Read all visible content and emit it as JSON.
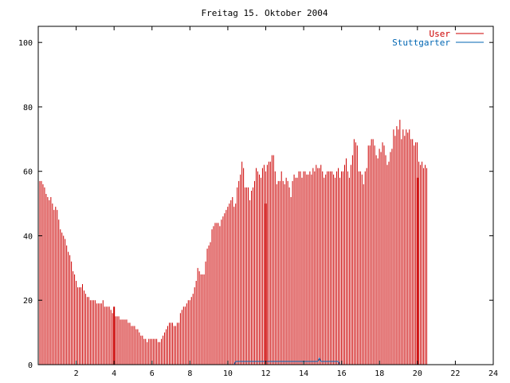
{
  "chart_data": {
    "type": "bar",
    "title": "Freitag 15. Oktober 2004",
    "xlabel": "",
    "ylabel": "",
    "xlim": [
      0,
      24
    ],
    "ylim": [
      0,
      105
    ],
    "x_ticks": [
      2,
      4,
      6,
      8,
      10,
      12,
      14,
      16,
      18,
      20,
      22,
      24
    ],
    "y_ticks": [
      0,
      20,
      40,
      60,
      80,
      100
    ],
    "grid": false,
    "legend_position": "top-right",
    "series": [
      {
        "name": "User",
        "color": "#cc0000",
        "sample_interval_hours": 0.0833,
        "values": [
          61,
          57,
          57,
          56,
          55,
          53,
          52,
          51,
          52,
          50,
          48,
          49,
          48,
          45,
          42,
          41,
          40,
          39,
          37,
          35,
          34,
          32,
          29,
          28,
          26,
          24,
          24,
          24,
          25,
          23,
          22,
          21,
          21,
          20,
          20,
          20,
          20,
          19,
          19,
          19,
          19,
          20,
          18,
          18,
          18,
          18,
          17,
          16,
          15,
          15,
          15,
          15,
          14,
          14,
          14,
          14,
          14,
          13,
          13,
          12,
          12,
          12,
          11,
          11,
          10,
          9,
          9,
          8,
          8,
          7,
          8,
          8,
          8,
          8,
          8,
          8,
          7,
          7,
          8,
          9,
          10,
          11,
          12,
          13,
          13,
          13,
          12,
          12,
          13,
          13,
          16,
          17,
          18,
          18,
          19,
          20,
          20,
          21,
          22,
          24,
          26,
          30,
          29,
          28,
          28,
          28,
          32,
          36,
          37,
          38,
          42,
          43,
          44,
          44,
          44,
          43,
          45,
          46,
          47,
          48,
          49,
          50,
          51,
          52,
          49,
          50,
          55,
          57,
          59,
          63,
          61,
          55,
          55,
          55,
          51,
          54,
          55,
          57,
          61,
          60,
          59,
          58,
          61,
          62,
          60,
          62,
          63,
          63,
          65,
          65,
          60,
          56,
          57,
          57,
          60,
          57,
          56,
          58,
          57,
          55,
          52,
          57,
          59,
          58,
          58,
          60,
          60,
          58,
          60,
          60,
          59,
          59,
          60,
          59,
          61,
          60,
          62,
          61,
          61,
          62,
          60,
          58,
          59,
          60,
          60,
          60,
          60,
          59,
          58,
          60,
          61,
          58,
          60,
          60,
          62,
          64,
          60,
          58,
          62,
          65,
          70,
          69,
          68,
          60,
          60,
          59,
          56,
          60,
          61,
          68,
          68,
          70,
          70,
          68,
          65,
          64,
          67,
          66,
          69,
          68,
          65,
          62,
          63,
          66,
          67,
          73,
          71,
          74,
          73,
          76,
          70,
          73,
          71,
          73,
          72,
          73,
          70,
          70,
          68,
          69,
          69,
          63,
          62,
          63,
          61,
          62,
          61
        ]
      },
      {
        "name": "Stuttgarter",
        "color": "#0066b3",
        "sample_interval_hours": 0.0833,
        "values": [
          0,
          0,
          0,
          0,
          0,
          0,
          0,
          0,
          0,
          0,
          0,
          0,
          0,
          0,
          0,
          0,
          0,
          0,
          0,
          0,
          0,
          0,
          0,
          0,
          0,
          0,
          0,
          0,
          0,
          0,
          0,
          0,
          0,
          0,
          0,
          0,
          0,
          0,
          0,
          0,
          0,
          0,
          0,
          0,
          0,
          0,
          0,
          0,
          0,
          0,
          0,
          0,
          0,
          0,
          0,
          0,
          0,
          0,
          0,
          0,
          0,
          0,
          0,
          0,
          0,
          0,
          0,
          0,
          0,
          0,
          0,
          0,
          0,
          0,
          0,
          0,
          0,
          0,
          0,
          0,
          0,
          0,
          0,
          0,
          0,
          0,
          0,
          0,
          0,
          0,
          0,
          0,
          0,
          0,
          0,
          0,
          0,
          0,
          0,
          0,
          0,
          0,
          0,
          0,
          0,
          0,
          0,
          0,
          0,
          0,
          0,
          0,
          0,
          0,
          0,
          0,
          0,
          0,
          0,
          0,
          0,
          0,
          0,
          0,
          0,
          1,
          1,
          1,
          1,
          1,
          1,
          1,
          1,
          1,
          1,
          1,
          1,
          1,
          1,
          1,
          1,
          1,
          1,
          1,
          1,
          1,
          1,
          1,
          1,
          1,
          1,
          1,
          1,
          1,
          1,
          1,
          1,
          1,
          1,
          1,
          1,
          1,
          1,
          1,
          1,
          1,
          1,
          1,
          1,
          1,
          1,
          1,
          1,
          1,
          1,
          1,
          1,
          1,
          2,
          1,
          1,
          1,
          1,
          1,
          1,
          1,
          1,
          1,
          1,
          1,
          1,
          0,
          0,
          0,
          0,
          0,
          0,
          0,
          0,
          0,
          0,
          0,
          0,
          0,
          0,
          0,
          0,
          0,
          0,
          0,
          0,
          0,
          0,
          0,
          0,
          0,
          0,
          0,
          0,
          0,
          0,
          0,
          0,
          0,
          0,
          0,
          0,
          0,
          0,
          0,
          0,
          0,
          0,
          0,
          0,
          0,
          0,
          0,
          0,
          0,
          0,
          0,
          0,
          0,
          0,
          0,
          0,
          0,
          0,
          0,
          0,
          0,
          0,
          0,
          0,
          0,
          0,
          0,
          0,
          0,
          0,
          0,
          0,
          0,
          0,
          0,
          0,
          0
        ]
      }
    ],
    "highlight_lines": [
      {
        "x": 4.0,
        "value": 18
      },
      {
        "x": 12.0,
        "value": 50
      },
      {
        "x": 20.0,
        "value": 58
      }
    ]
  }
}
